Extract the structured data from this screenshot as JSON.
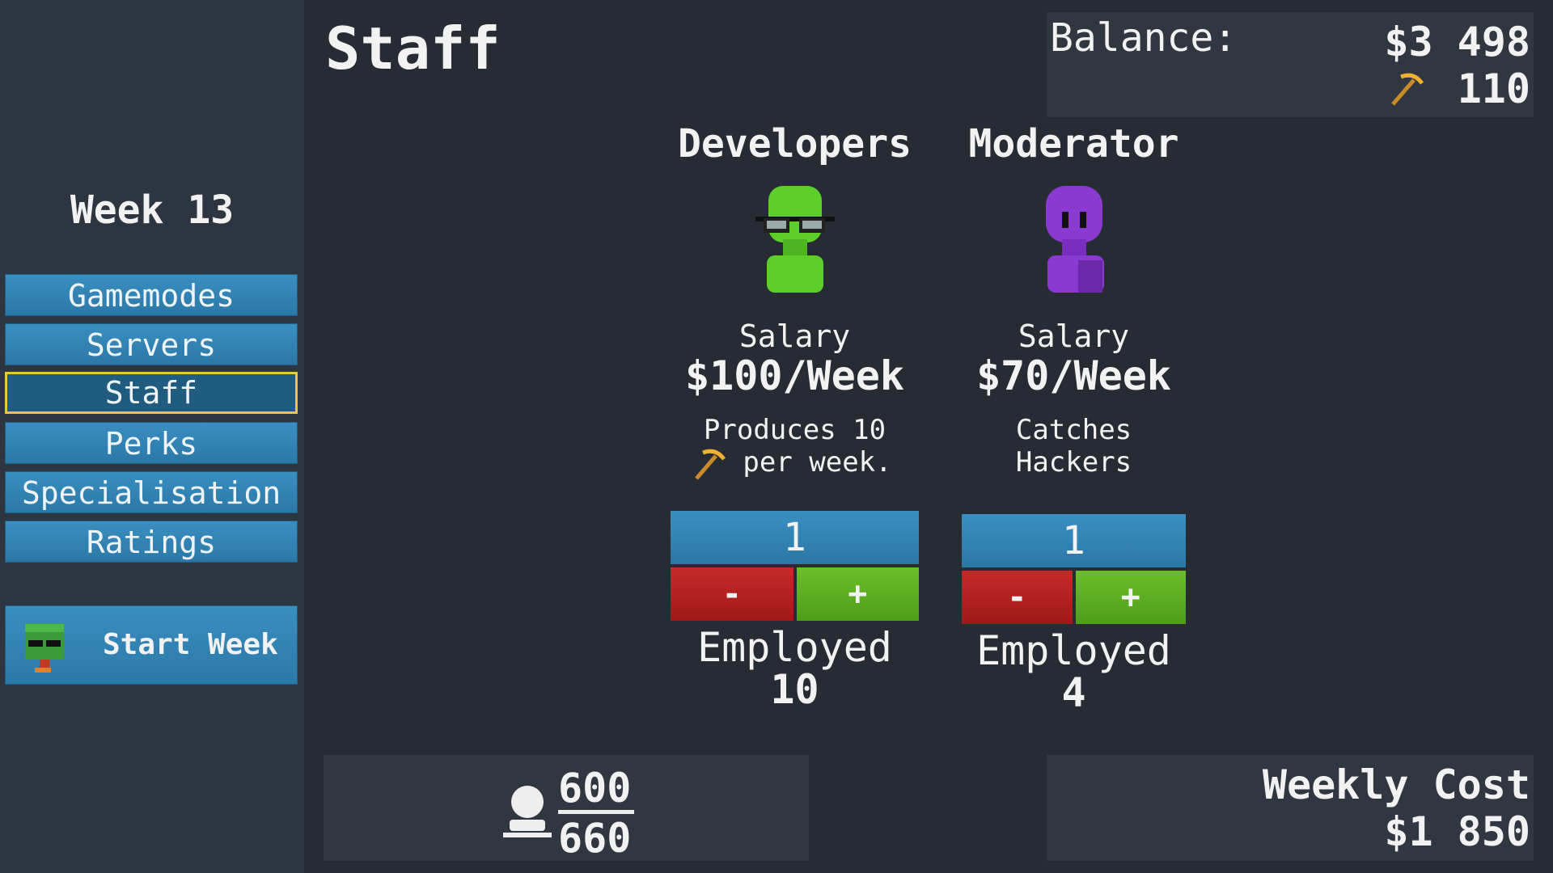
{
  "header": {
    "title": "Staff",
    "balance_label": "Balance:",
    "balance": "$3 498",
    "income": "110"
  },
  "sidebar": {
    "week": "Week 13",
    "nav": [
      "Gamemodes",
      "Servers",
      "Staff",
      "Perks",
      "Specialisation",
      "Ratings"
    ],
    "start_week": "Start Week"
  },
  "staff": [
    {
      "name": "Developers",
      "salary_label": "Salary",
      "salary": "$100/Week",
      "description": [
        "Produces 10",
        "per week."
      ],
      "count": "1",
      "minus": "-",
      "plus": "+",
      "employed_label": "Employed",
      "employed": "10"
    },
    {
      "name": "Moderator",
      "salary_label": "Salary",
      "salary": "$70/Week",
      "description": [
        "Catches",
        "Hackers"
      ],
      "count": "1",
      "minus": "-",
      "plus": "+",
      "employed_label": "Employed",
      "employed": "4"
    }
  ],
  "footer": {
    "capacity_used": "600",
    "capacity_total": "660",
    "weekly_cost_label": "Weekly Cost",
    "weekly_cost": "$1 850"
  }
}
